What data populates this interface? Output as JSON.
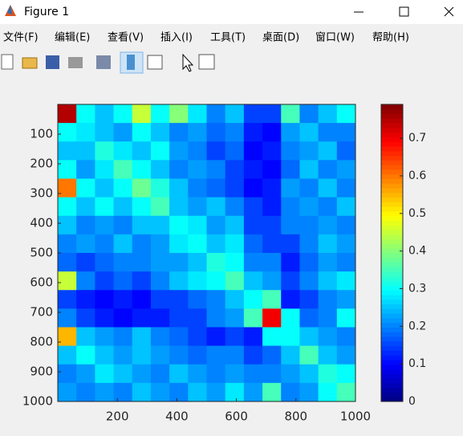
{
  "window": {
    "title": "Figure 1",
    "menu": [
      "文件(F)",
      "编辑(E)",
      "查看(V)",
      "插入(I)",
      "工具(T)",
      "桌面(D)",
      "窗口(W)",
      "帮助(H)"
    ]
  },
  "chart_data": {
    "type": "heatmap",
    "colormap": "jet",
    "xlim": [
      0,
      1000
    ],
    "ylim": [
      0,
      1000
    ],
    "y_reversed": true,
    "xticks": [
      200,
      400,
      600,
      800,
      1000
    ],
    "yticks": [
      100,
      200,
      300,
      400,
      500,
      600,
      700,
      800,
      900,
      1000
    ],
    "colorbar": {
      "clim": [
        0,
        0.79
      ],
      "ticks": [
        0,
        0.1,
        0.2,
        0.3,
        0.4,
        0.5,
        0.6,
        0.7
      ]
    },
    "values": [
      [
        0.75,
        0.3,
        0.25,
        0.3,
        0.45,
        0.3,
        0.4,
        0.28,
        0.2,
        0.25,
        0.15,
        0.15,
        0.35,
        0.2,
        0.25,
        0.3
      ],
      [
        0.3,
        0.28,
        0.25,
        0.22,
        0.3,
        0.25,
        0.2,
        0.22,
        0.18,
        0.2,
        0.12,
        0.1,
        0.22,
        0.25,
        0.2,
        0.2
      ],
      [
        0.25,
        0.25,
        0.32,
        0.28,
        0.25,
        0.3,
        0.22,
        0.2,
        0.15,
        0.18,
        0.1,
        0.12,
        0.2,
        0.22,
        0.25,
        0.18
      ],
      [
        0.3,
        0.22,
        0.28,
        0.35,
        0.3,
        0.25,
        0.2,
        0.22,
        0.2,
        0.15,
        0.12,
        0.1,
        0.18,
        0.25,
        0.2,
        0.22
      ],
      [
        0.6,
        0.3,
        0.25,
        0.3,
        0.38,
        0.32,
        0.25,
        0.2,
        0.18,
        0.15,
        0.1,
        0.12,
        0.22,
        0.2,
        0.25,
        0.2
      ],
      [
        0.3,
        0.25,
        0.3,
        0.25,
        0.3,
        0.35,
        0.25,
        0.22,
        0.25,
        0.2,
        0.15,
        0.12,
        0.2,
        0.22,
        0.2,
        0.25
      ],
      [
        0.25,
        0.2,
        0.22,
        0.2,
        0.25,
        0.25,
        0.3,
        0.28,
        0.22,
        0.25,
        0.15,
        0.15,
        0.2,
        0.2,
        0.22,
        0.2
      ],
      [
        0.2,
        0.22,
        0.2,
        0.25,
        0.2,
        0.22,
        0.28,
        0.3,
        0.25,
        0.28,
        0.18,
        0.15,
        0.15,
        0.2,
        0.25,
        0.22
      ],
      [
        0.18,
        0.15,
        0.18,
        0.2,
        0.2,
        0.22,
        0.22,
        0.25,
        0.32,
        0.3,
        0.2,
        0.2,
        0.12,
        0.18,
        0.22,
        0.2
      ],
      [
        0.45,
        0.2,
        0.15,
        0.18,
        0.15,
        0.2,
        0.25,
        0.28,
        0.3,
        0.35,
        0.25,
        0.22,
        0.15,
        0.2,
        0.25,
        0.28
      ],
      [
        0.15,
        0.12,
        0.1,
        0.12,
        0.1,
        0.15,
        0.15,
        0.18,
        0.2,
        0.25,
        0.3,
        0.35,
        0.12,
        0.15,
        0.2,
        0.22
      ],
      [
        0.2,
        0.15,
        0.12,
        0.1,
        0.12,
        0.12,
        0.15,
        0.15,
        0.2,
        0.22,
        0.35,
        0.7,
        0.3,
        0.18,
        0.2,
        0.3
      ],
      [
        0.55,
        0.25,
        0.22,
        0.2,
        0.25,
        0.2,
        0.18,
        0.15,
        0.12,
        0.15,
        0.12,
        0.3,
        0.3,
        0.25,
        0.22,
        0.2
      ],
      [
        0.25,
        0.3,
        0.25,
        0.22,
        0.25,
        0.22,
        0.2,
        0.18,
        0.2,
        0.2,
        0.15,
        0.18,
        0.25,
        0.35,
        0.25,
        0.22
      ],
      [
        0.2,
        0.22,
        0.28,
        0.25,
        0.22,
        0.2,
        0.25,
        0.22,
        0.2,
        0.22,
        0.2,
        0.2,
        0.22,
        0.25,
        0.32,
        0.3
      ],
      [
        0.22,
        0.2,
        0.22,
        0.2,
        0.25,
        0.22,
        0.2,
        0.25,
        0.22,
        0.28,
        0.22,
        0.35,
        0.2,
        0.22,
        0.3,
        0.35
      ]
    ]
  }
}
